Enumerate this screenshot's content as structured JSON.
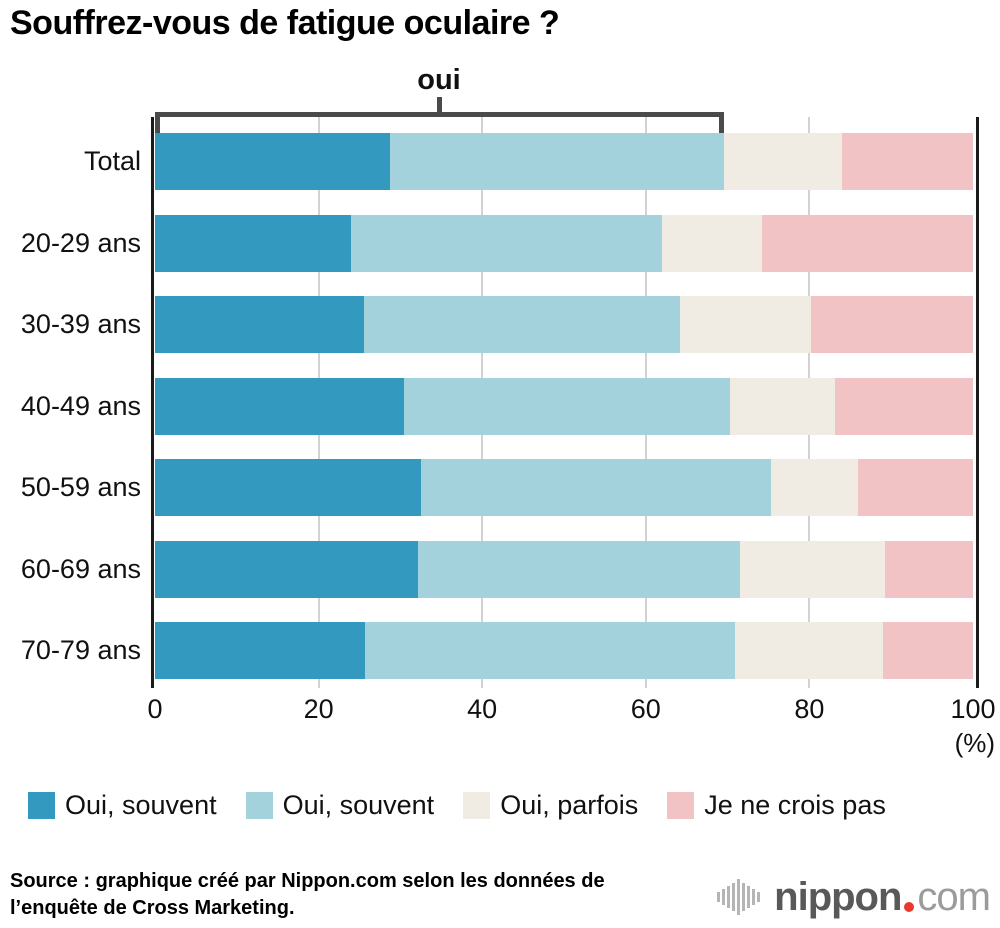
{
  "title": "Souffrez-vous de fatigue oculaire ?",
  "chart_data": {
    "type": "bar",
    "orientation": "horizontal",
    "stacked": true,
    "title": "Souffrez-vous de fatigue oculaire ?",
    "categories": [
      "Total",
      "20-29 ans",
      "30-39 ans",
      "40-49 ans",
      "50-59 ans",
      "60-69 ans",
      "70-79 ans"
    ],
    "series": [
      {
        "name": "Oui, souvent",
        "color": "#3499BE",
        "values": [
          28.7,
          24.0,
          25.5,
          30.5,
          32.5,
          32.2,
          25.7
        ]
      },
      {
        "name": "Oui, souvent",
        "color": "#A4D2DC",
        "values": [
          40.9,
          38.0,
          38.7,
          39.8,
          42.8,
          39.3,
          45.2
        ]
      },
      {
        "name": "Oui, parfois",
        "color": "#F0EBE3",
        "values": [
          14.4,
          12.2,
          16.0,
          12.8,
          10.7,
          17.8,
          18.1
        ]
      },
      {
        "name": "Je ne crois pas",
        "color": "#F2C3C5",
        "values": [
          16.0,
          25.8,
          19.8,
          16.9,
          14.0,
          10.7,
          11.0
        ]
      }
    ],
    "xticks": [
      0,
      20,
      40,
      60,
      80,
      100
    ],
    "xlim": [
      0,
      100
    ],
    "xlabel": "(%)",
    "grid": true,
    "legend_position": "bottom",
    "annotation": {
      "label": "oui",
      "from": 0,
      "to": 69.6
    }
  },
  "source": {
    "line1": "Source : graphique créé par Nippon.com selon les données de",
    "line2": "l’enquête de Cross Marketing."
  },
  "logo": {
    "name": "nippon",
    "tld": "com"
  }
}
